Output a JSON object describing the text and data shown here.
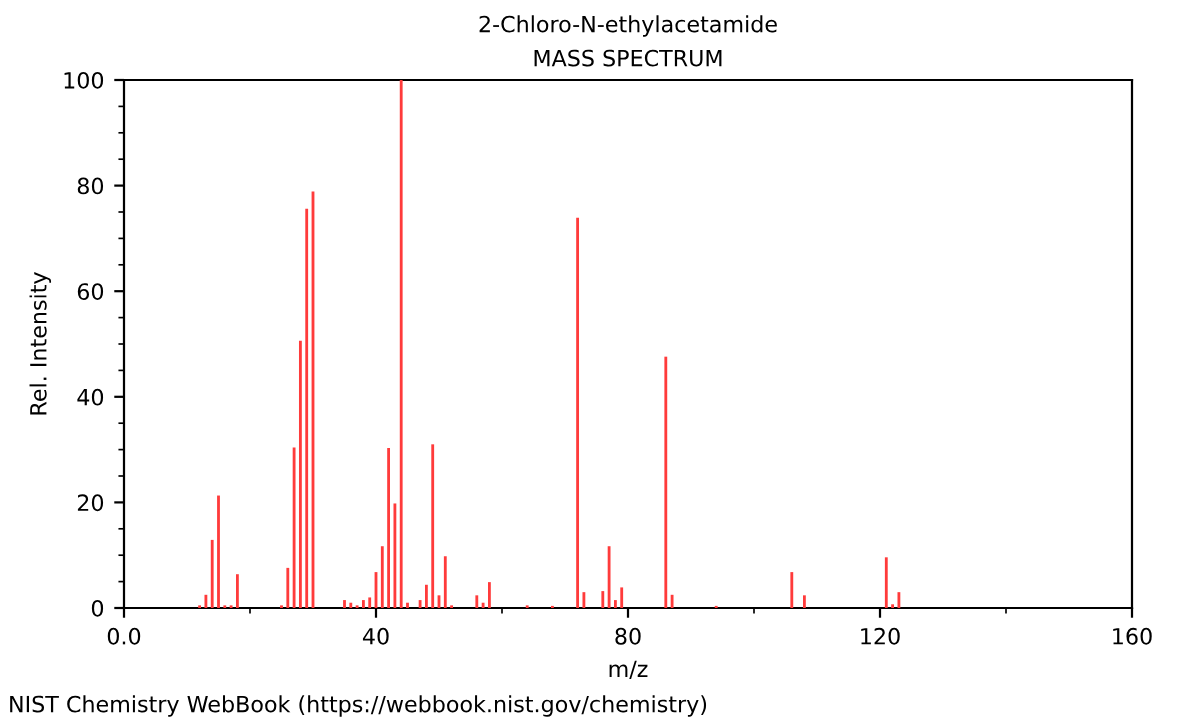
{
  "chart_data": {
    "type": "bar",
    "title": "2-Chloro-N-ethylacetamide",
    "subtitle": "MASS SPECTRUM",
    "xlabel": "m/z",
    "ylabel": "Rel. Intensity",
    "x": [
      12,
      13,
      14,
      15,
      16,
      17,
      18,
      25,
      26,
      27,
      28,
      29,
      30,
      35,
      36,
      37,
      38,
      39,
      40,
      41,
      42,
      43,
      44,
      45,
      47,
      48,
      49,
      50,
      51,
      52,
      56,
      57,
      58,
      64,
      68,
      72,
      73,
      76,
      77,
      78,
      79,
      86,
      87,
      94,
      106,
      108,
      121,
      122,
      123
    ],
    "values": [
      0.5,
      2.5,
      12.9,
      21.3,
      0.5,
      0.5,
      6.4,
      0.5,
      7.6,
      30.4,
      50.6,
      75.6,
      78.9,
      1.5,
      1,
      0.5,
      1.5,
      2,
      6.8,
      11.7,
      30.3,
      19.8,
      100,
      1,
      1.5,
      4.4,
      31,
      2.4,
      9.8,
      0.5,
      2.4,
      1,
      4.9,
      0.5,
      0.4,
      73.9,
      3,
      3.2,
      11.7,
      1.5,
      3.9,
      47.6,
      2.5,
      0.4,
      6.8,
      2.4,
      9.6,
      0.7,
      3
    ],
    "color": "#ff3b3b",
    "xlim": [
      0,
      160
    ],
    "xticks": [
      {
        "value": 0,
        "label": "0.0"
      },
      40,
      80,
      120,
      160
    ],
    "ylim": [
      0,
      100
    ],
    "yticks": [
      0,
      20,
      40,
      60,
      80,
      100
    ],
    "grid": false,
    "legend": false,
    "annotations": [
      "NIST Chemistry WebBook (https://webbook.nist.gov/chemistry)"
    ]
  }
}
